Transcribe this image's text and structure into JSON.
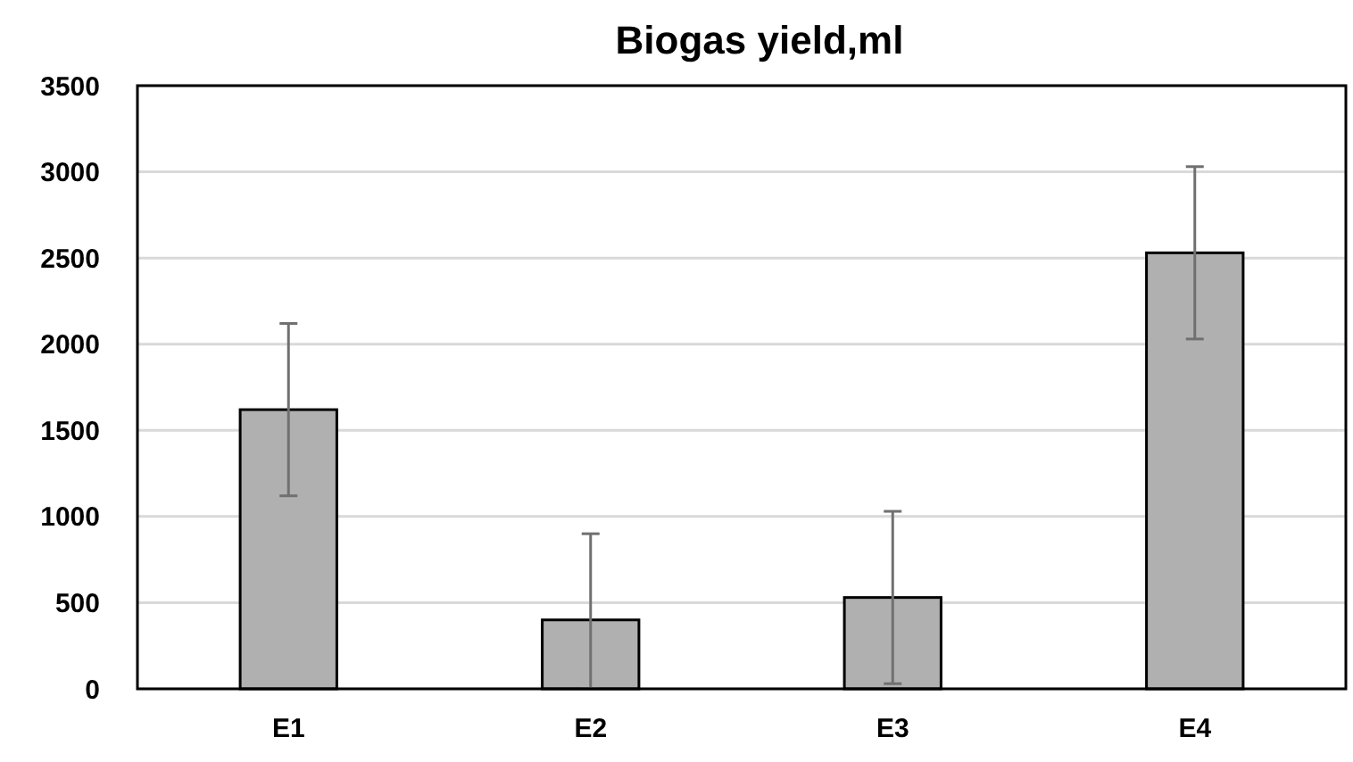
{
  "chart_data": {
    "type": "bar",
    "title": "Biogas yield,ml",
    "categories": [
      "E1",
      "E2",
      "E3",
      "E4"
    ],
    "values": [
      1620,
      400,
      530,
      2530
    ],
    "errors": [
      500,
      [
        0,
        900
      ],
      500,
      500
    ],
    "color": "#b0b0b0",
    "ylim": [
      0,
      3500
    ],
    "yticks": [
      0,
      500,
      1000,
      1500,
      2000,
      2500,
      3000,
      3500
    ],
    "grid": "y"
  }
}
